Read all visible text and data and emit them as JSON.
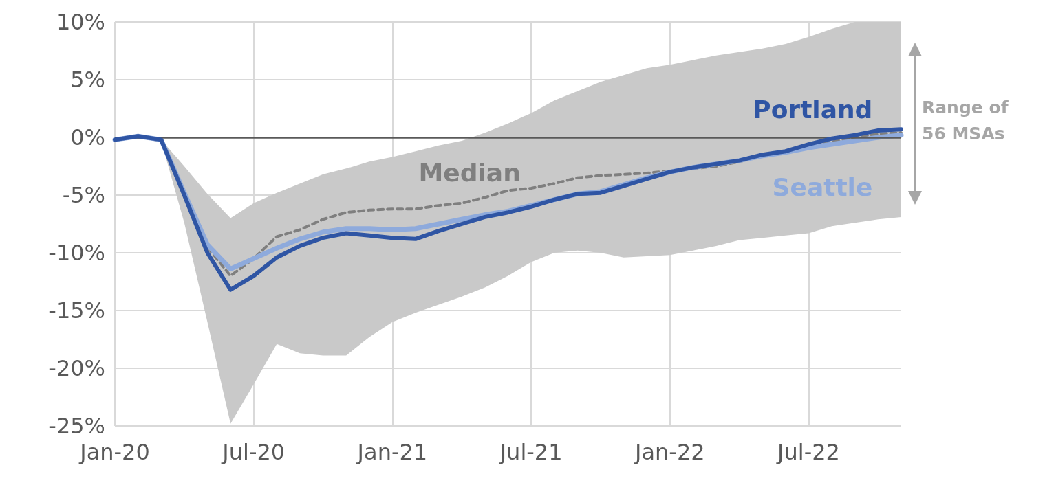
{
  "chart_data": {
    "type": "line",
    "categories": [
      "Jan-20",
      null,
      null,
      null,
      null,
      null,
      "Jul-20",
      null,
      null,
      null,
      null,
      null,
      "Jan-21",
      null,
      null,
      null,
      null,
      null,
      "Jul-21",
      null,
      null,
      null,
      null,
      null,
      "Jan-22",
      null,
      null,
      null,
      null,
      null,
      "Jul-22",
      null,
      null,
      null,
      null
    ],
    "series": [
      {
        "name": "Median",
        "color": "#7f7f7f",
        "line_style": "dashed",
        "values": [
          -0.1,
          0.1,
          -0.3,
          -5,
          -9.5,
          -12,
          -10.5,
          -8.6,
          -8,
          -7.1,
          -6.5,
          -6.3,
          -6.2,
          -6.2,
          -5.9,
          -5.7,
          -5.2,
          -4.6,
          -4.4,
          -4.0,
          -3.5,
          -3.3,
          -3.2,
          -3.1,
          -2.9,
          -2.7,
          -2.5,
          -2.1,
          -1.6,
          -1.3,
          -0.8,
          -0.4,
          0.0,
          0.3,
          0.4
        ],
        "lower": [
          -0.1,
          0.1,
          -0.3,
          -7.4,
          -16.0,
          -24.8,
          -21.4,
          -17.9,
          -18.7,
          -18.9,
          -18.9,
          -17.3,
          -16.0,
          -15.2,
          -14.5,
          -13.8,
          -13.0,
          -12.0,
          -10.8,
          -10.0,
          -9.8,
          -10.0,
          -10.4,
          -10.3,
          -10.2,
          -9.8,
          -9.4,
          -8.9,
          -8.7,
          -8.5,
          -8.3,
          -7.7,
          -7.4,
          -7.1,
          -6.9
        ],
        "upper": [
          -0.1,
          0.1,
          -0.2,
          -2.5,
          -4.9,
          -7.0,
          -5.7,
          -4.8,
          -4.0,
          -3.2,
          -2.7,
          -2.1,
          -1.7,
          -1.2,
          -0.7,
          -0.3,
          0.4,
          1.2,
          2.1,
          3.2,
          4.0,
          4.8,
          5.4,
          6.0,
          6.3,
          6.7,
          7.1,
          7.4,
          7.7,
          8.1,
          8.7,
          9.4,
          10,
          10,
          10
        ]
      },
      {
        "name": "Seattle",
        "color": "#8eaadc",
        "line_style": "solid",
        "values": [
          -0.2,
          0.1,
          -0.2,
          -4.8,
          -9.3,
          -11.4,
          -10.5,
          -9.6,
          -8.8,
          -8.2,
          -7.9,
          -7.9,
          -8.0,
          -7.9,
          -7.5,
          -7.1,
          -6.7,
          -6.4,
          -5.9,
          -5.4,
          -4.9,
          -4.7,
          -4.1,
          -3.5,
          -3.0,
          -2.6,
          -2.3,
          -2.0,
          -1.6,
          -1.3,
          -0.9,
          -0.6,
          -0.3,
          0.0,
          0.2
        ]
      },
      {
        "name": "Portland",
        "color": "#2f55a4",
        "line_style": "solid",
        "values": [
          -0.2,
          0.1,
          -0.2,
          -5,
          -10.0,
          -13.2,
          -12.0,
          -10.4,
          -9.4,
          -8.7,
          -8.3,
          -8.5,
          -8.7,
          -8.8,
          -8.1,
          -7.5,
          -6.9,
          -6.5,
          -6.0,
          -5.4,
          -4.9,
          -4.8,
          -4.2,
          -3.6,
          -3.0,
          -2.6,
          -2.3,
          -2.0,
          -1.5,
          -1.2,
          -0.6,
          -0.1,
          0.2,
          0.6,
          0.7
        ]
      }
    ],
    "ylim": [
      -25,
      10
    ],
    "yticks": [
      {
        "value": -25,
        "label": "-25%"
      },
      {
        "value": -20,
        "label": "-20%"
      },
      {
        "value": -15,
        "label": "-15%"
      },
      {
        "value": -10,
        "label": "-10%"
      },
      {
        "value": -5,
        "label": "-5%"
      },
      {
        "value": 0,
        "label": "0%"
      },
      {
        "value": 5,
        "label": "5%"
      },
      {
        "value": 10,
        "label": "10%"
      }
    ],
    "ref_lines": [
      {
        "axis": "y",
        "value": 0,
        "label": null,
        "color": "#595959"
      }
    ],
    "annotations": [
      "Range of 56 MSAs"
    ],
    "grid": true,
    "legend": false,
    "marker": "none"
  }
}
